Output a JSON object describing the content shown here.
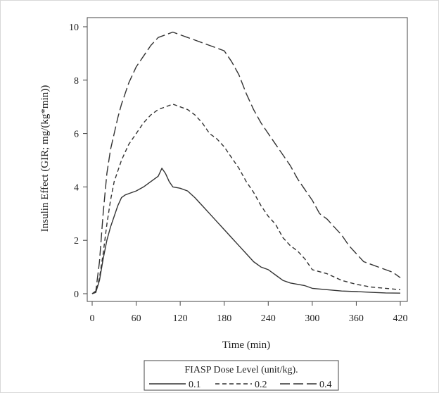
{
  "chart_data": {
    "type": "line",
    "xlabel": "Time (min)",
    "ylabel": "Insulin Effect (GIR; mg/(kg*min))",
    "xlim": [
      0,
      420
    ],
    "ylim": [
      0,
      10
    ],
    "xticks": [
      0,
      60,
      120,
      180,
      240,
      300,
      360,
      420
    ],
    "yticks": [
      0,
      2,
      4,
      6,
      8,
      10
    ],
    "grid": false,
    "legend": {
      "title": "FIASP Dose Level (unit/kg).",
      "placement": "bottom-center"
    },
    "series": [
      {
        "name": "0.1",
        "dash": "solid",
        "x": [
          0,
          5,
          10,
          15,
          20,
          25,
          30,
          35,
          40,
          45,
          50,
          60,
          70,
          80,
          90,
          95,
          100,
          105,
          110,
          120,
          130,
          140,
          150,
          160,
          170,
          180,
          190,
          200,
          210,
          220,
          230,
          240,
          250,
          260,
          270,
          280,
          290,
          300,
          320,
          340,
          360,
          380,
          400,
          420
        ],
        "y": [
          0,
          0.05,
          0.5,
          1.3,
          2.0,
          2.5,
          2.9,
          3.3,
          3.6,
          3.7,
          3.75,
          3.85,
          4.0,
          4.2,
          4.4,
          4.7,
          4.5,
          4.2,
          4.0,
          3.95,
          3.85,
          3.6,
          3.3,
          3.0,
          2.7,
          2.4,
          2.1,
          1.8,
          1.5,
          1.2,
          1.0,
          0.9,
          0.7,
          0.5,
          0.4,
          0.35,
          0.3,
          0.2,
          0.15,
          0.1,
          0.08,
          0.05,
          0.03,
          0.02
        ]
      },
      {
        "name": "0.2",
        "dash": "short-dash",
        "x": [
          0,
          5,
          10,
          15,
          20,
          25,
          30,
          35,
          40,
          45,
          50,
          60,
          70,
          80,
          90,
          100,
          110,
          120,
          130,
          140,
          150,
          160,
          170,
          180,
          190,
          200,
          210,
          220,
          230,
          240,
          250,
          260,
          270,
          280,
          290,
          300,
          320,
          340,
          360,
          380,
          400,
          420
        ],
        "y": [
          0,
          0.05,
          0.6,
          1.5,
          2.6,
          3.5,
          4.2,
          4.6,
          5.0,
          5.3,
          5.6,
          6.0,
          6.4,
          6.7,
          6.9,
          7.0,
          7.1,
          7.0,
          6.9,
          6.7,
          6.4,
          6.0,
          5.8,
          5.5,
          5.1,
          4.7,
          4.2,
          3.8,
          3.3,
          2.9,
          2.6,
          2.1,
          1.8,
          1.6,
          1.3,
          0.9,
          0.75,
          0.5,
          0.35,
          0.25,
          0.2,
          0.15
        ]
      },
      {
        "name": "0.4",
        "dash": "long-dash",
        "x": [
          0,
          5,
          10,
          15,
          20,
          25,
          30,
          35,
          40,
          45,
          50,
          60,
          70,
          80,
          90,
          100,
          110,
          120,
          130,
          140,
          150,
          160,
          170,
          180,
          190,
          200,
          210,
          220,
          230,
          240,
          250,
          260,
          270,
          280,
          290,
          300,
          310,
          320,
          330,
          340,
          350,
          360,
          370,
          380,
          390,
          400,
          410,
          420
        ],
        "y": [
          0,
          0.1,
          1.2,
          3.0,
          4.5,
          5.4,
          6.0,
          6.6,
          7.1,
          7.5,
          7.9,
          8.5,
          8.9,
          9.3,
          9.6,
          9.7,
          9.8,
          9.7,
          9.6,
          9.5,
          9.4,
          9.3,
          9.2,
          9.1,
          8.7,
          8.2,
          7.5,
          6.9,
          6.4,
          6.0,
          5.6,
          5.2,
          4.8,
          4.3,
          3.9,
          3.5,
          3.0,
          2.8,
          2.5,
          2.2,
          1.8,
          1.5,
          1.2,
          1.1,
          1.0,
          0.9,
          0.8,
          0.6
        ]
      }
    ]
  }
}
